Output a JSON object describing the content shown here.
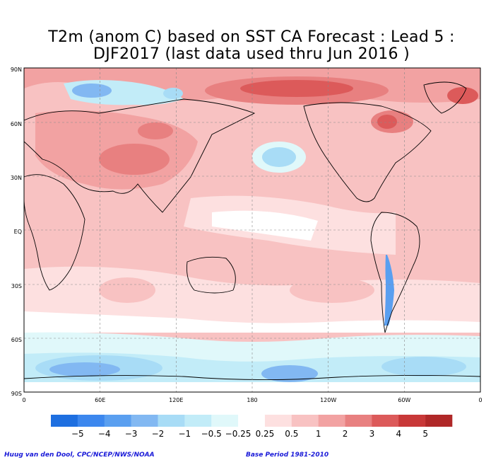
{
  "title_line1": "T2m (anom C) based on SST CA Forecast : Lead 5 :",
  "title_line2": "DJF2017 (last data used thru Jun 2016 )",
  "lat_labels": [
    "90N",
    "60N",
    "30N",
    "EQ",
    "30S",
    "60S",
    "90S"
  ],
  "lon_labels": [
    "0",
    "60E",
    "120E",
    "180",
    "120W",
    "60W",
    "0"
  ],
  "legend": {
    "labels": [
      "−5",
      "−4",
      "−3",
      "−2",
      "−1",
      "−0.5",
      "−0.25",
      "0.25",
      "0.5",
      "1",
      "2",
      "3",
      "4",
      "5"
    ],
    "colors": [
      "#1e6fe0",
      "#3c87ee",
      "#5a9ff0",
      "#82b8f2",
      "#a8dcf6",
      "#c2ecf8",
      "#e0f8fa",
      "#ffffff",
      "#fde0e0",
      "#f8c2c2",
      "#f2a2a2",
      "#e88080",
      "#dc5a5a",
      "#c83838",
      "#b02828"
    ]
  },
  "footer_left": "Huug van den Dool, CPC/NCEP/NWS/NOAA",
  "footer_right": "Base Period 1981-2010"
}
